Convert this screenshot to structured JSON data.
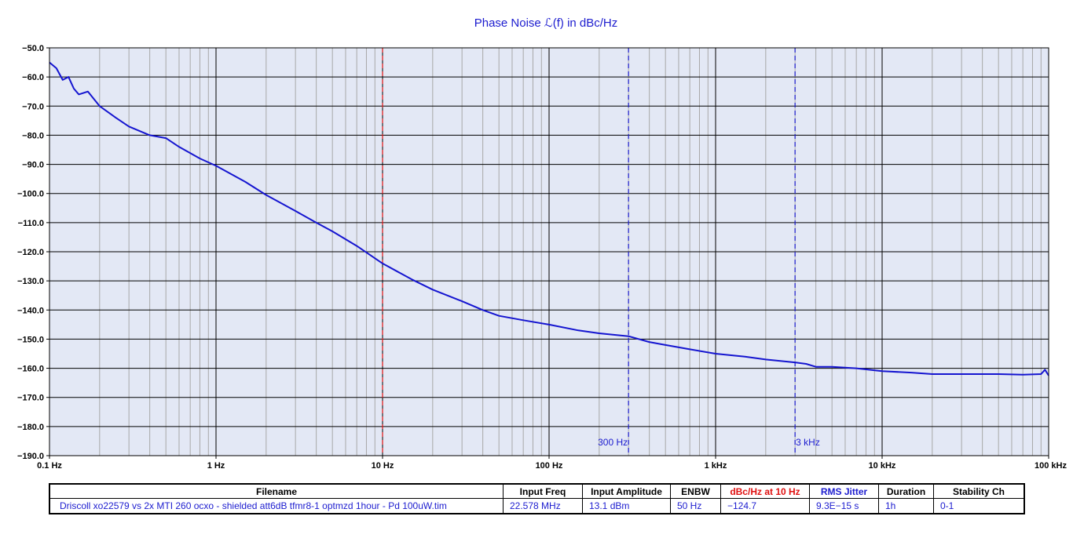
{
  "chart_data": {
    "type": "line",
    "title": "Phase  Noise ℒ(f) in dBc/Hz",
    "x_scale": "log",
    "xlim": [
      0.1,
      100000
    ],
    "ylim": [
      -190,
      -50
    ],
    "x_ticks": [
      {
        "value": 0.1,
        "label": "0.1 Hz"
      },
      {
        "value": 1,
        "label": "1 Hz"
      },
      {
        "value": 10,
        "label": "10 Hz"
      },
      {
        "value": 100,
        "label": "100 Hz"
      },
      {
        "value": 1000,
        "label": "1 kHz"
      },
      {
        "value": 10000,
        "label": "10 kHz"
      },
      {
        "value": 100000,
        "label": "100 kHz"
      }
    ],
    "y_ticks": [
      {
        "value": -50,
        "label": "−50.0"
      },
      {
        "value": -60,
        "label": "−60.0"
      },
      {
        "value": -70,
        "label": "−70.0"
      },
      {
        "value": -80,
        "label": "−80.0"
      },
      {
        "value": -90,
        "label": "−90.0"
      },
      {
        "value": -100,
        "label": "−100.0"
      },
      {
        "value": -110,
        "label": "−110.0"
      },
      {
        "value": -120,
        "label": "−120.0"
      },
      {
        "value": -130,
        "label": "−130.0"
      },
      {
        "value": -140,
        "label": "−140.0"
      },
      {
        "value": -150,
        "label": "−150.0"
      },
      {
        "value": -160,
        "label": "−160.0"
      },
      {
        "value": -170,
        "label": "−170.0"
      },
      {
        "value": -180,
        "label": "−180.0"
      },
      {
        "value": -190,
        "label": "−190.0"
      }
    ],
    "grid": true,
    "markers": [
      {
        "x": 10,
        "color": "#e01010",
        "label": ""
      },
      {
        "x": 300,
        "color": "#1c1ccf",
        "label": "300 Hz"
      },
      {
        "x": 3000,
        "color": "#1c1ccf",
        "label": "3 kHz"
      }
    ],
    "series": [
      {
        "color": "#1515d0",
        "x": [
          0.1,
          0.11,
          0.12,
          0.13,
          0.14,
          0.15,
          0.17,
          0.2,
          0.25,
          0.3,
          0.4,
          0.5,
          0.6,
          0.8,
          1,
          1.5,
          2,
          3,
          4,
          5,
          7,
          10,
          15,
          20,
          30,
          40,
          50,
          70,
          100,
          150,
          200,
          300,
          400,
          500,
          700,
          1000,
          1500,
          2000,
          3000,
          3500,
          4000,
          5000,
          7000,
          10000,
          15000,
          20000,
          30000,
          50000,
          70000,
          90000,
          95000,
          100000
        ],
        "y": [
          -55,
          -57,
          -61,
          -60,
          -64,
          -66,
          -65,
          -70,
          -74,
          -77,
          -80,
          -81,
          -84,
          -88,
          -90.5,
          -96,
          -100.5,
          -106,
          -110,
          -113,
          -118,
          -124,
          -129.5,
          -133,
          -137,
          -140,
          -142,
          -143.5,
          -145,
          -147,
          -148,
          -149,
          -151,
          -152,
          -153.5,
          -155,
          -156,
          -157,
          -158,
          -158.5,
          -159.5,
          -159.5,
          -160,
          -161,
          -161.5,
          -162,
          -162,
          -162,
          -162.2,
          -162,
          -160.5,
          -162.5
        ]
      }
    ]
  },
  "table": {
    "headers": [
      "Filename",
      "Input Freq",
      "Input Amplitude",
      "ENBW",
      "dBc/Hz at 10 Hz",
      "RMS Jitter",
      "Duration",
      "Stability Ch"
    ],
    "values": [
      "Driscoll xo22579 vs 2x MTI 260 ocxo - shielded att6dB tfmr8-1 optmzd 1hour - Pd 100uW.tim",
      "22.578 MHz",
      "13.1 dBm",
      "50 Hz",
      "−124.7",
      "9.3E−15 s",
      "1h",
      "0-1"
    ]
  }
}
